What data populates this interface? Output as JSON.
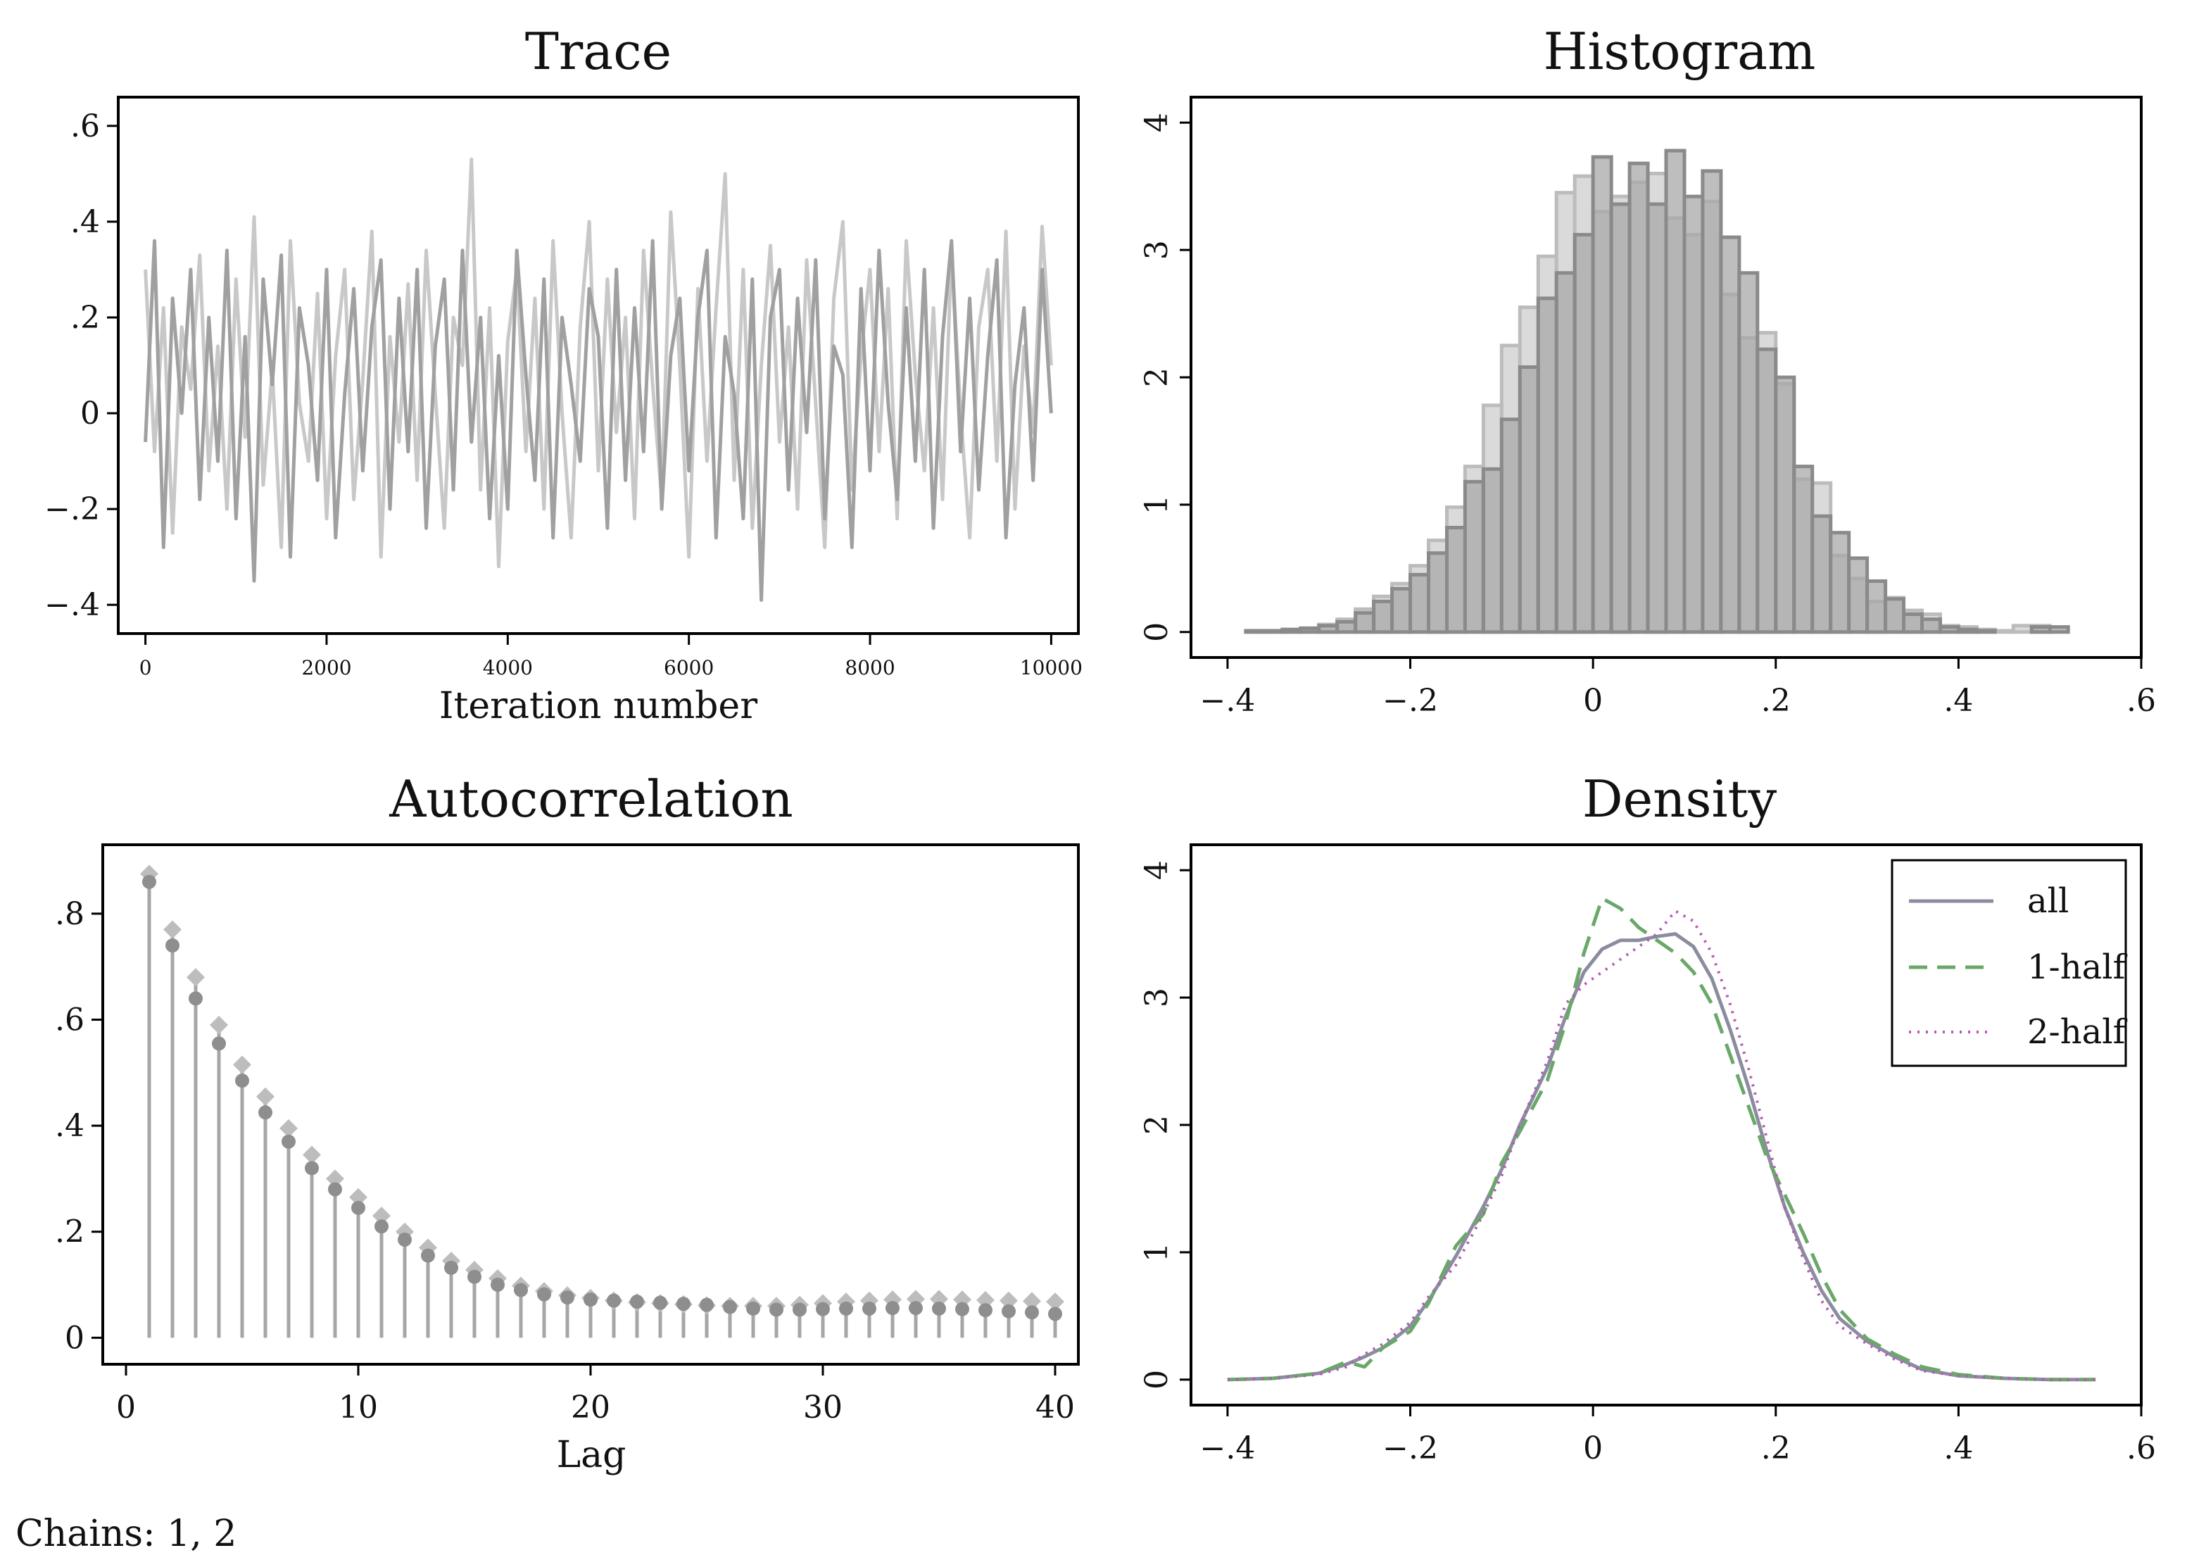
{
  "footnote": "Chains: 1, 2",
  "chart_data": [
    {
      "type": "line",
      "title": "Trace",
      "xlabel": "Iteration number",
      "ylabel": "",
      "xlim": [
        -300,
        10300
      ],
      "ylim": [
        -0.46,
        0.66
      ],
      "x_ticks": [
        0,
        2000,
        4000,
        6000,
        8000,
        10000
      ],
      "x_tick_labels": [
        "0",
        "2000",
        "4000",
        "6000",
        "8000",
        "10000"
      ],
      "y_ticks": [
        -0.4,
        -0.2,
        0,
        0.2,
        0.4,
        0.6
      ],
      "y_tick_labels": [
        "−.4",
        "−.2",
        "0",
        ".2",
        ".4",
        ".6"
      ],
      "grid": false,
      "series": [
        {
          "color": "#c8c8c8",
          "x": [
            0,
            100,
            200,
            300,
            400,
            500,
            600,
            700,
            800,
            900,
            1000,
            1100,
            1200,
            1300,
            1400,
            1500,
            1600,
            1700,
            1800,
            1900,
            2000,
            2100,
            2200,
            2300,
            2400,
            2500,
            2600,
            2700,
            2800,
            2900,
            3000,
            3100,
            3200,
            3300,
            3400,
            3500,
            3600,
            3700,
            3800,
            3900,
            4000,
            4100,
            4200,
            4300,
            4400,
            4500,
            4600,
            4700,
            4800,
            4900,
            5000,
            5100,
            5200,
            5300,
            5400,
            5500,
            5600,
            5700,
            5800,
            5900,
            6000,
            6100,
            6200,
            6300,
            6400,
            6500,
            6600,
            6700,
            6800,
            6900,
            7000,
            7100,
            7200,
            7300,
            7400,
            7500,
            7600,
            7700,
            7800,
            7900,
            8000,
            8100,
            8200,
            8300,
            8400,
            8500,
            8600,
            8700,
            8800,
            8900,
            9000,
            9100,
            9200,
            9300,
            9400,
            9500,
            9600,
            9700,
            9800,
            9900,
            10000
          ],
          "y": [
            0.3,
            -0.08,
            0.22,
            -0.25,
            0.18,
            0.05,
            0.33,
            -0.12,
            0.14,
            -0.2,
            0.28,
            -0.05,
            0.41,
            -0.15,
            0.09,
            -0.28,
            0.36,
            0.02,
            -0.1,
            0.25,
            -0.22,
            0.12,
            0.3,
            -0.18,
            0.07,
            0.38,
            -0.3,
            0.16,
            -0.06,
            0.27,
            -0.14,
            0.34,
            0.04,
            -0.24,
            0.2,
            0.1,
            0.53,
            -0.16,
            0.22,
            -0.32,
            0.15,
            0.3,
            -0.08,
            0.24,
            -0.2,
            0.36,
            0.0,
            -0.26,
            0.18,
            0.4,
            -0.12,
            0.28,
            -0.04,
            0.2,
            -0.22,
            0.34,
            0.06,
            -0.18,
            0.42,
            0.1,
            -0.3,
            0.26,
            -0.1,
            0.22,
            0.5,
            -0.14,
            0.3,
            -0.24,
            0.1,
            0.35,
            -0.06,
            0.18,
            -0.2,
            0.32,
            0.02,
            -0.28,
            0.24,
            0.4,
            -0.16,
            0.12,
            0.3,
            -0.08,
            0.26,
            -0.22,
            0.36,
            0.08,
            -0.12,
            0.22,
            -0.18,
            0.34,
            0.0,
            -0.26,
            0.18,
            0.3,
            -0.1,
            0.38,
            -0.2,
            0.14,
            -0.04,
            0.39,
            0.1
          ]
        },
        {
          "color": "#a0a0a0",
          "x": [
            0,
            100,
            200,
            300,
            400,
            500,
            600,
            700,
            800,
            900,
            1000,
            1100,
            1200,
            1300,
            1400,
            1500,
            1600,
            1700,
            1800,
            1900,
            2000,
            2100,
            2200,
            2300,
            2400,
            2500,
            2600,
            2700,
            2800,
            2900,
            3000,
            3100,
            3200,
            3300,
            3400,
            3500,
            3600,
            3700,
            3800,
            3900,
            4000,
            4100,
            4200,
            4300,
            4400,
            4500,
            4600,
            4700,
            4800,
            4900,
            5000,
            5100,
            5200,
            5300,
            5400,
            5500,
            5600,
            5700,
            5800,
            5900,
            6000,
            6100,
            6200,
            6300,
            6400,
            6500,
            6600,
            6700,
            6800,
            6900,
            7000,
            7100,
            7200,
            7300,
            7400,
            7500,
            7600,
            7700,
            7800,
            7900,
            8000,
            8100,
            8200,
            8300,
            8400,
            8500,
            8600,
            8700,
            8800,
            8900,
            9000,
            9100,
            9200,
            9300,
            9400,
            9500,
            9600,
            9700,
            9800,
            9900,
            10000
          ],
          "y": [
            -0.06,
            0.36,
            -0.28,
            0.24,
            0.0,
            0.3,
            -0.18,
            0.2,
            -0.1,
            0.34,
            -0.22,
            0.16,
            -0.35,
            0.28,
            0.06,
            0.33,
            -0.3,
            0.22,
            0.1,
            -0.14,
            0.3,
            -0.26,
            0.04,
            0.26,
            -0.12,
            0.18,
            0.32,
            -0.2,
            0.24,
            -0.08,
            0.3,
            -0.24,
            0.14,
            0.28,
            -0.16,
            0.34,
            -0.06,
            0.2,
            -0.22,
            0.12,
            -0.2,
            0.34,
            0.08,
            -0.14,
            0.28,
            -0.26,
            0.2,
            0.06,
            -0.1,
            0.26,
            0.16,
            -0.24,
            0.3,
            -0.14,
            0.22,
            -0.08,
            0.36,
            -0.2,
            0.12,
            0.24,
            -0.12,
            0.2,
            0.34,
            -0.26,
            0.16,
            0.04,
            -0.22,
            0.28,
            -0.39,
            0.2,
            0.3,
            -0.16,
            0.24,
            -0.04,
            0.32,
            -0.22,
            0.14,
            0.08,
            -0.28,
            0.26,
            -0.12,
            0.34,
            0.02,
            -0.18,
            0.22,
            -0.1,
            0.3,
            -0.24,
            0.16,
            0.36,
            -0.08,
            0.24,
            -0.16,
            0.12,
            0.32,
            -0.26,
            0.06,
            0.22,
            -0.14,
            0.3,
            0.0
          ]
        }
      ]
    },
    {
      "type": "bar",
      "title": "Histogram",
      "xlabel": "",
      "ylabel": "",
      "xlim": [
        -0.44,
        0.6
      ],
      "ylim": [
        -0.2,
        4.2
      ],
      "x_ticks": [
        -0.4,
        -0.2,
        0,
        0.2,
        0.4,
        0.6
      ],
      "x_tick_labels": [
        "−.4",
        "−.2",
        "0",
        ".2",
        ".4",
        ".6"
      ],
      "y_ticks": [
        0,
        1,
        2,
        3,
        4
      ],
      "y_tick_labels": [
        "0",
        "1",
        "2",
        "3",
        "4"
      ],
      "grid": false,
      "series": [
        {
          "color": "#d4d4d4",
          "bin_edges": [
            -0.38,
            -0.36,
            -0.34,
            -0.32,
            -0.3,
            -0.28,
            -0.26,
            -0.24,
            -0.22,
            -0.2,
            -0.18,
            -0.16,
            -0.14,
            -0.12,
            -0.1,
            -0.08,
            -0.06,
            -0.04,
            -0.02,
            0.0,
            0.02,
            0.04,
            0.06,
            0.08,
            0.1,
            0.12,
            0.14,
            0.16,
            0.18,
            0.2,
            0.22,
            0.24,
            0.26,
            0.28,
            0.3,
            0.32,
            0.34,
            0.36,
            0.38,
            0.4,
            0.42,
            0.44,
            0.46,
            0.48,
            0.5,
            0.52
          ],
          "values": [
            0.01,
            0.01,
            0.02,
            0.03,
            0.06,
            0.1,
            0.18,
            0.28,
            0.38,
            0.52,
            0.72,
            0.98,
            1.3,
            1.78,
            2.25,
            2.55,
            2.95,
            3.45,
            3.58,
            3.3,
            3.42,
            3.53,
            3.6,
            3.25,
            3.12,
            3.38,
            2.65,
            2.31,
            2.35,
            1.95,
            1.2,
            1.17,
            0.6,
            0.42,
            0.24,
            0.27,
            0.17,
            0.14,
            0.05,
            0.04,
            0.02,
            0.01,
            0.05,
            0.05,
            0.0
          ]
        },
        {
          "color": "#a8a8a8",
          "bin_edges": [
            -0.38,
            -0.36,
            -0.34,
            -0.32,
            -0.3,
            -0.28,
            -0.26,
            -0.24,
            -0.22,
            -0.2,
            -0.18,
            -0.16,
            -0.14,
            -0.12,
            -0.1,
            -0.08,
            -0.06,
            -0.04,
            -0.02,
            0.0,
            0.02,
            0.04,
            0.06,
            0.08,
            0.1,
            0.12,
            0.14,
            0.16,
            0.18,
            0.2,
            0.22,
            0.24,
            0.26,
            0.28,
            0.3,
            0.32,
            0.34,
            0.36,
            0.38,
            0.4,
            0.42,
            0.44,
            0.46,
            0.48,
            0.5,
            0.52
          ],
          "values": [
            0.01,
            0.01,
            0.02,
            0.03,
            0.05,
            0.08,
            0.15,
            0.24,
            0.34,
            0.45,
            0.62,
            0.82,
            1.18,
            1.28,
            1.67,
            2.08,
            2.62,
            2.82,
            3.12,
            3.73,
            3.36,
            3.68,
            3.36,
            3.78,
            3.42,
            3.62,
            3.1,
            2.82,
            2.22,
            2.0,
            1.3,
            0.91,
            0.78,
            0.58,
            0.4,
            0.26,
            0.14,
            0.1,
            0.04,
            0.02,
            0.01,
            0.0,
            0.0,
            0.04,
            0.04
          ]
        }
      ]
    },
    {
      "type": "scatter",
      "title": "Autocorrelation",
      "xlabel": "Lag",
      "ylabel": "",
      "xlim": [
        -1,
        41
      ],
      "ylim": [
        -0.05,
        0.93
      ],
      "x_ticks": [
        0,
        10,
        20,
        30,
        40
      ],
      "x_tick_labels": [
        "0",
        "10",
        "20",
        "30",
        "40"
      ],
      "y_ticks": [
        0,
        0.2,
        0.4,
        0.6,
        0.8
      ],
      "y_tick_labels": [
        "0",
        ".2",
        ".4",
        ".6",
        ".8"
      ],
      "grid": false,
      "x": [
        1,
        2,
        3,
        4,
        5,
        6,
        7,
        8,
        9,
        10,
        11,
        12,
        13,
        14,
        15,
        16,
        17,
        18,
        19,
        20,
        21,
        22,
        23,
        24,
        25,
        26,
        27,
        28,
        29,
        30,
        31,
        32,
        33,
        34,
        35,
        36,
        37,
        38,
        39,
        40
      ],
      "series": [
        {
          "marker": "diamond",
          "color": "#bdbdbd",
          "values": [
            0.875,
            0.77,
            0.68,
            0.59,
            0.515,
            0.455,
            0.395,
            0.345,
            0.3,
            0.265,
            0.23,
            0.2,
            0.17,
            0.145,
            0.128,
            0.112,
            0.098,
            0.088,
            0.08,
            0.075,
            0.07,
            0.067,
            0.065,
            0.063,
            0.061,
            0.06,
            0.06,
            0.06,
            0.062,
            0.065,
            0.068,
            0.07,
            0.072,
            0.073,
            0.073,
            0.072,
            0.071,
            0.07,
            0.069,
            0.068
          ]
        },
        {
          "marker": "circle",
          "color": "#8e8e8e",
          "values": [
            0.86,
            0.74,
            0.64,
            0.555,
            0.485,
            0.425,
            0.37,
            0.32,
            0.28,
            0.245,
            0.21,
            0.185,
            0.155,
            0.132,
            0.115,
            0.1,
            0.09,
            0.082,
            0.076,
            0.072,
            0.07,
            0.068,
            0.066,
            0.064,
            0.062,
            0.058,
            0.055,
            0.053,
            0.053,
            0.054,
            0.055,
            0.055,
            0.056,
            0.056,
            0.055,
            0.054,
            0.052,
            0.05,
            0.048,
            0.045
          ]
        }
      ]
    },
    {
      "type": "line",
      "title": "Density",
      "xlabel": "",
      "ylabel": "",
      "xlim": [
        -0.44,
        0.6
      ],
      "ylim": [
        -0.2,
        4.2
      ],
      "x_ticks": [
        -0.4,
        -0.2,
        0,
        0.2,
        0.4,
        0.6
      ],
      "x_tick_labels": [
        "−.4",
        "−.2",
        "0",
        ".2",
        ".4",
        ".6"
      ],
      "y_ticks": [
        0,
        1,
        2,
        3,
        4
      ],
      "y_tick_labels": [
        "0",
        "1",
        "2",
        "3",
        "4"
      ],
      "grid": false,
      "legend_position": "top-right",
      "x": [
        -0.4,
        -0.35,
        -0.3,
        -0.27,
        -0.25,
        -0.23,
        -0.2,
        -0.18,
        -0.15,
        -0.12,
        -0.1,
        -0.08,
        -0.05,
        -0.03,
        -0.01,
        0.01,
        0.03,
        0.05,
        0.07,
        0.09,
        0.11,
        0.13,
        0.15,
        0.17,
        0.19,
        0.21,
        0.23,
        0.25,
        0.27,
        0.3,
        0.33,
        0.36,
        0.4,
        0.45,
        0.5,
        0.55
      ],
      "series": [
        {
          "name": "all",
          "color": "#8c8ca0",
          "dash": "solid",
          "values": [
            0.0,
            0.01,
            0.05,
            0.12,
            0.18,
            0.25,
            0.42,
            0.62,
            0.97,
            1.36,
            1.65,
            2.0,
            2.45,
            2.85,
            3.2,
            3.38,
            3.45,
            3.45,
            3.48,
            3.5,
            3.4,
            3.15,
            2.75,
            2.3,
            1.8,
            1.35,
            1.0,
            0.7,
            0.48,
            0.3,
            0.18,
            0.08,
            0.03,
            0.01,
            0.0,
            0.0
          ]
        },
        {
          "name": "1-half",
          "color": "#6aa86a",
          "dash": "dashed",
          "values": [
            0.0,
            0.01,
            0.05,
            0.14,
            0.1,
            0.25,
            0.38,
            0.6,
            1.05,
            1.3,
            1.7,
            1.95,
            2.35,
            2.8,
            3.35,
            3.78,
            3.7,
            3.55,
            3.45,
            3.35,
            3.2,
            2.95,
            2.55,
            2.15,
            1.75,
            1.45,
            1.15,
            0.82,
            0.55,
            0.32,
            0.2,
            0.1,
            0.04,
            0.01,
            0.0,
            0.0
          ]
        },
        {
          "name": "2-half",
          "color": "#b55ab5",
          "dash": "dotted",
          "values": [
            0.0,
            0.01,
            0.04,
            0.1,
            0.2,
            0.28,
            0.45,
            0.65,
            0.9,
            1.3,
            1.6,
            2.0,
            2.5,
            2.95,
            3.1,
            3.2,
            3.3,
            3.4,
            3.5,
            3.68,
            3.6,
            3.35,
            2.95,
            2.45,
            1.9,
            1.35,
            0.95,
            0.62,
            0.42,
            0.28,
            0.16,
            0.07,
            0.03,
            0.01,
            0.0,
            0.0
          ]
        }
      ]
    }
  ]
}
